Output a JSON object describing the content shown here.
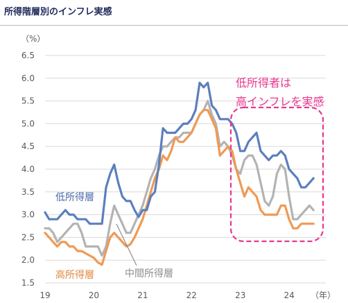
{
  "chart_data": {
    "type": "line",
    "title": "所得階層別のインフレ実感",
    "y_unit_label": "（%）",
    "x_unit_label": "（年）",
    "ylim": [
      1.5,
      6.5
    ],
    "yticks": [
      "6.5",
      "6.0",
      "5.5",
      "5.0",
      "4.5",
      "4.0",
      "3.5",
      "3.0",
      "2.5",
      "2.0",
      "1.5"
    ],
    "xlim": [
      2019.0,
      2024.75
    ],
    "x_ticks": [
      {
        "label": "19",
        "x": 2019.0
      },
      {
        "label": "20",
        "x": 2020.0
      },
      {
        "label": "21",
        "x": 2021.0
      },
      {
        "label": "22",
        "x": 2022.0
      },
      {
        "label": "23",
        "x": 2023.0
      },
      {
        "label": "24",
        "x": 2024.0
      }
    ],
    "grid": "horizontal",
    "start": 2019.0,
    "step": 0.0833,
    "series": [
      {
        "name": "低所得層",
        "color": "#5b7fbd",
        "values": [
          3.05,
          2.9,
          2.9,
          2.9,
          3.0,
          3.1,
          3.0,
          3.0,
          2.9,
          2.9,
          2.9,
          2.8,
          2.8,
          2.8,
          2.8,
          3.6,
          3.9,
          4.1,
          3.7,
          3.4,
          3.3,
          3.3,
          3.1,
          2.95,
          3.1,
          3.1,
          3.4,
          3.5,
          4.1,
          4.9,
          4.8,
          4.8,
          4.8,
          4.9,
          5.0,
          5.0,
          5.1,
          5.3,
          5.9,
          5.8,
          5.9,
          5.4,
          5.3,
          5.1,
          5.1,
          5.1,
          5.0,
          4.8,
          4.4,
          4.4,
          4.6,
          4.7,
          4.8,
          4.4,
          4.3,
          4.2,
          4.3,
          4.3,
          4.4,
          4.3,
          4.0,
          3.9,
          3.8,
          3.6,
          3.6,
          3.7,
          3.8
        ]
      },
      {
        "name": "中間所得層",
        "color": "#b3b3b3",
        "values": [
          2.7,
          2.7,
          2.6,
          2.4,
          2.5,
          2.6,
          2.7,
          2.8,
          2.8,
          2.6,
          2.3,
          2.3,
          2.3,
          2.3,
          2.1,
          2.3,
          2.8,
          3.2,
          3.0,
          2.8,
          2.6,
          2.6,
          2.8,
          3.0,
          3.2,
          3.5,
          3.8,
          4.0,
          4.3,
          4.5,
          4.5,
          4.6,
          4.7,
          4.7,
          4.8,
          4.8,
          4.8,
          5.0,
          5.2,
          5.3,
          5.5,
          5.2,
          5.0,
          4.5,
          4.6,
          4.5,
          4.3,
          4.0,
          3.9,
          4.2,
          4.3,
          4.3,
          4.1,
          3.7,
          3.3,
          3.2,
          3.4,
          3.9,
          4.1,
          4.0,
          3.4,
          2.9,
          2.9,
          3.0,
          3.1,
          3.2,
          3.1
        ]
      },
      {
        "name": "高所得層",
        "color": "#ee9a55",
        "values": [
          2.6,
          2.5,
          2.4,
          2.3,
          2.4,
          2.4,
          2.3,
          2.3,
          2.2,
          2.2,
          2.15,
          2.1,
          2.05,
          1.95,
          1.9,
          2.2,
          2.5,
          2.6,
          2.5,
          2.4,
          2.3,
          2.35,
          2.5,
          2.7,
          2.9,
          3.2,
          3.5,
          3.8,
          4.0,
          4.3,
          4.2,
          4.4,
          4.7,
          4.6,
          4.6,
          4.7,
          4.8,
          5.0,
          5.2,
          5.3,
          5.3,
          5.1,
          4.9,
          4.3,
          4.4,
          4.5,
          4.4,
          4.0,
          3.7,
          3.4,
          3.6,
          3.5,
          3.4,
          3.1,
          3.0,
          3.0,
          3.0,
          3.0,
          3.2,
          3.2,
          2.9,
          2.7,
          2.7,
          2.8,
          2.8,
          2.8,
          2.8
        ]
      }
    ],
    "annotations": {
      "low_label": "低所得層",
      "mid_label": "中間所得層",
      "high_label": "高所得層",
      "callout_line1": "低所得者は",
      "callout_line2": "高インフレを実感"
    },
    "colors": {
      "low": "#5b7fbd",
      "mid": "#b3b3b3",
      "high": "#ee9a55",
      "callout": "#e8368f",
      "title": "#1f2a5a"
    }
  }
}
